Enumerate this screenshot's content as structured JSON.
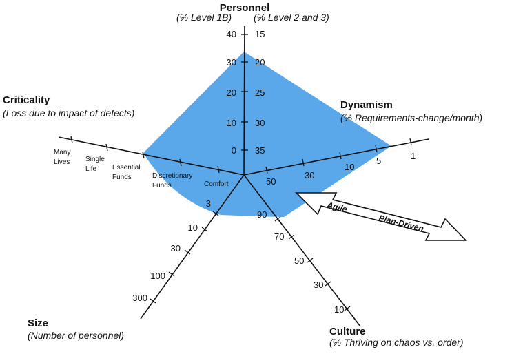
{
  "colors": {
    "fill": "#5aa7ea",
    "axis": "#111111"
  },
  "axes": {
    "personnel": {
      "title": "Personnel",
      "subtitle_left": "(% Level 1B)",
      "subtitle_right": "(% Level 2 and 3)",
      "ticks_left": [
        "40",
        "30",
        "20",
        "10",
        "0"
      ],
      "ticks_right": [
        "15",
        "20",
        "25",
        "30",
        "35"
      ]
    },
    "dynamism": {
      "title": "Dynamism",
      "subtitle": "(% Requirements-change/month)",
      "ticks": [
        "50",
        "30",
        "10",
        "5",
        "1"
      ]
    },
    "culture": {
      "title": "Culture",
      "subtitle": "(% Thriving on chaos vs. order)",
      "ticks": [
        "90",
        "70",
        "50",
        "30",
        "10"
      ]
    },
    "size": {
      "title": "Size",
      "subtitle": "(Number of personnel)",
      "ticks": [
        "3",
        "10",
        "30",
        "100",
        "300"
      ]
    },
    "criticality": {
      "title": "Criticality",
      "subtitle": "(Loss due to impact of defects)",
      "levels": [
        [
          "Comfort"
        ],
        [
          "Discretionary",
          "Funds"
        ],
        [
          "Essential",
          "Funds"
        ],
        [
          "Single",
          "Life"
        ],
        [
          "Many",
          "Lives"
        ]
      ]
    }
  },
  "arrow": {
    "agile": "Agile",
    "plan_driven": "Plan-Driven"
  }
}
